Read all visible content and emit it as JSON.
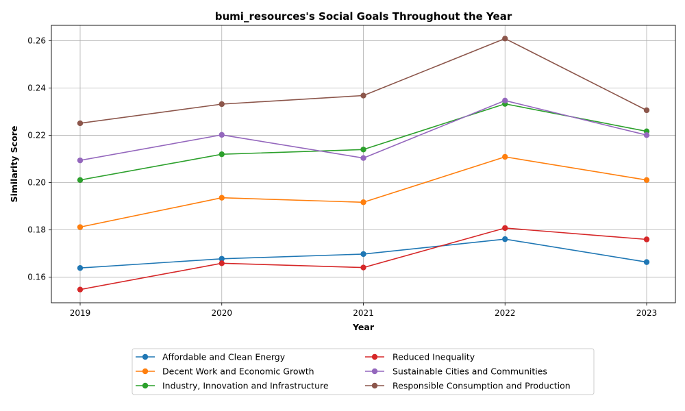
{
  "chart_data": {
    "type": "line",
    "title": "bumi_resources's Social Goals Throughout the Year",
    "xlabel": "Year",
    "ylabel": "Similarity Score",
    "x": [
      "2019",
      "2020",
      "2021",
      "2022",
      "2023"
    ],
    "ylim": [
      0.1492,
      0.2665
    ],
    "yticks": [
      "0.16",
      "0.18",
      "0.20",
      "0.22",
      "0.24",
      "0.26"
    ],
    "ytick_values": [
      0.16,
      0.18,
      0.2,
      0.22,
      0.24,
      0.26
    ],
    "grid": true,
    "legend_position": "bottom-center",
    "series": [
      {
        "name": "Affordable and Clean Energy",
        "color": "#1f77b4",
        "values": [
          0.1639,
          0.1678,
          0.1698,
          0.1761,
          0.1664
        ]
      },
      {
        "name": "Decent Work and Economic Growth",
        "color": "#ff7f0e",
        "values": [
          0.1812,
          0.1936,
          0.1917,
          0.2109,
          0.2011
        ]
      },
      {
        "name": "Industry, Innovation and Infrastructure",
        "color": "#2ca02c",
        "values": [
          0.2011,
          0.212,
          0.214,
          0.2333,
          0.2217
        ]
      },
      {
        "name": "Reduced Inequality",
        "color": "#d62728",
        "values": [
          0.1548,
          0.1659,
          0.1641,
          0.1808,
          0.176
        ]
      },
      {
        "name": "Sustainable Cities and Communities",
        "color": "#9467bd",
        "values": [
          0.2094,
          0.2202,
          0.2104,
          0.2347,
          0.2201
        ]
      },
      {
        "name": "Responsible Consumption and Production",
        "color": "#8c564b",
        "values": [
          0.2251,
          0.2332,
          0.2368,
          0.2609,
          0.2306
        ]
      }
    ]
  }
}
